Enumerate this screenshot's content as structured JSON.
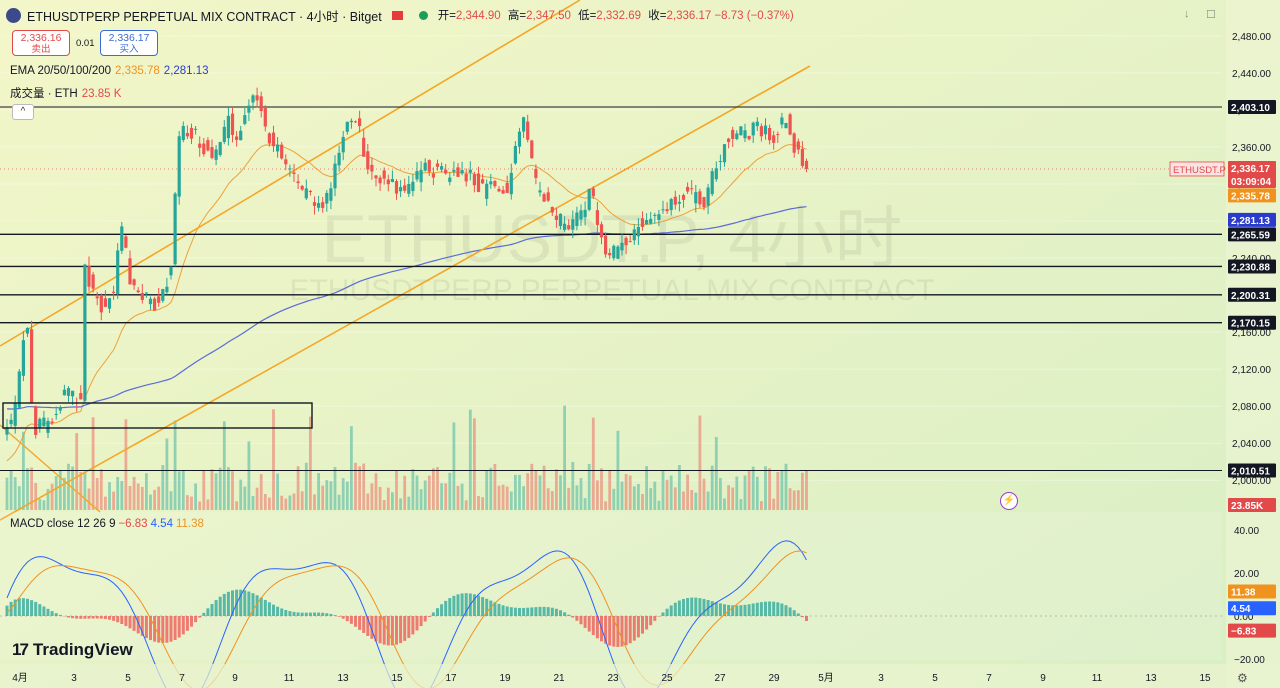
{
  "symbol": {
    "title": "ETHUSDTPERP PERPETUAL MIX CONTRACT · 4小时 · Bitget",
    "watermark_symbol": "ETHUSDT.P, 4小时",
    "watermark_name": "ETHUSDTPERP PERPETUAL MIX CONTRACT",
    "ticker_tag": "ETHUSDT.P"
  },
  "ohlc": {
    "open_label": "开=",
    "open": "2,344.90",
    "high_label": "高=",
    "high": "2,347.50",
    "low_label": "低=",
    "low": "2,332.69",
    "close_label": "收=",
    "close": "2,336.17",
    "change": "−8.73 (−0.37%)"
  },
  "trade": {
    "sell_price": "2,336.16",
    "sell_label": "卖出",
    "buy_price": "2,336.17",
    "buy_label": "买入",
    "spread": "0.01"
  },
  "indicators": {
    "ema_label": "EMA 20/50/100/200",
    "ema_value1": "2,335.78",
    "ema_value2": "2,281.13",
    "volume_label": "成交量 · ETH",
    "volume_value": "23.85 K",
    "macd_label": "MACD close 12 26 9",
    "macd_hist": "−6.83",
    "macd_line": "4.54",
    "macd_signal": "11.38"
  },
  "price_axis": {
    "ticks": [
      "2,480.00",
      "2,440.00",
      "2,400.00",
      "2,360.00",
      "2,320.00",
      "2,280.00",
      "2,240.00",
      "2,200.00",
      "2,160.00",
      "2,120.00",
      "2,080.00",
      "2,040.00",
      "2,000.00"
    ],
    "tick_values": [
      2480,
      2440,
      2400,
      2360,
      2320,
      2280,
      2240,
      2200,
      2160,
      2120,
      2080,
      2040,
      2000
    ],
    "current_price": "2,336.17",
    "countdown": "03:09:04",
    "ema_badge": "2,335.78",
    "ema200_badge": "2,281.13",
    "volume_badge": "23.85K"
  },
  "levels": [
    {
      "label": "2,403.10",
      "value": 2403.1
    },
    {
      "label": "2,265.59",
      "value": 2265.59
    },
    {
      "label": "2,230.88",
      "value": 2230.88
    },
    {
      "label": "2,200.31",
      "value": 2200.31
    },
    {
      "label": "2,170.15",
      "value": 2170.15
    },
    {
      "label": "2,010.51",
      "value": 2010.51
    }
  ],
  "macd_axis": {
    "ticks": [
      "40.00",
      "20.00",
      "0.00",
      "−20.00"
    ],
    "tick_values": [
      40,
      20,
      0,
      -20
    ],
    "signal_badge": "11.38",
    "macd_badge": "4.54",
    "hist_badge": "−6.83"
  },
  "time_axis": {
    "labels": [
      "4月",
      "3",
      "5",
      "7",
      "9",
      "11",
      "13",
      "15",
      "17",
      "19",
      "21",
      "23",
      "25",
      "27",
      "29",
      "5月",
      "3",
      "5",
      "7",
      "9",
      "11",
      "13",
      "15"
    ]
  },
  "branding": {
    "logo_text": "TradingView"
  },
  "colors": {
    "up": "#26a69a",
    "down": "#ef5350",
    "ema_fast": "#f0921e",
    "ema_slow": "#5b6bd8",
    "channel": "#f5a623",
    "level": "#131722",
    "badge_dark": "#131722",
    "badge_red": "#e24a4a",
    "badge_blue": "#2b3ccc",
    "badge_orange": "#f0921e"
  }
}
